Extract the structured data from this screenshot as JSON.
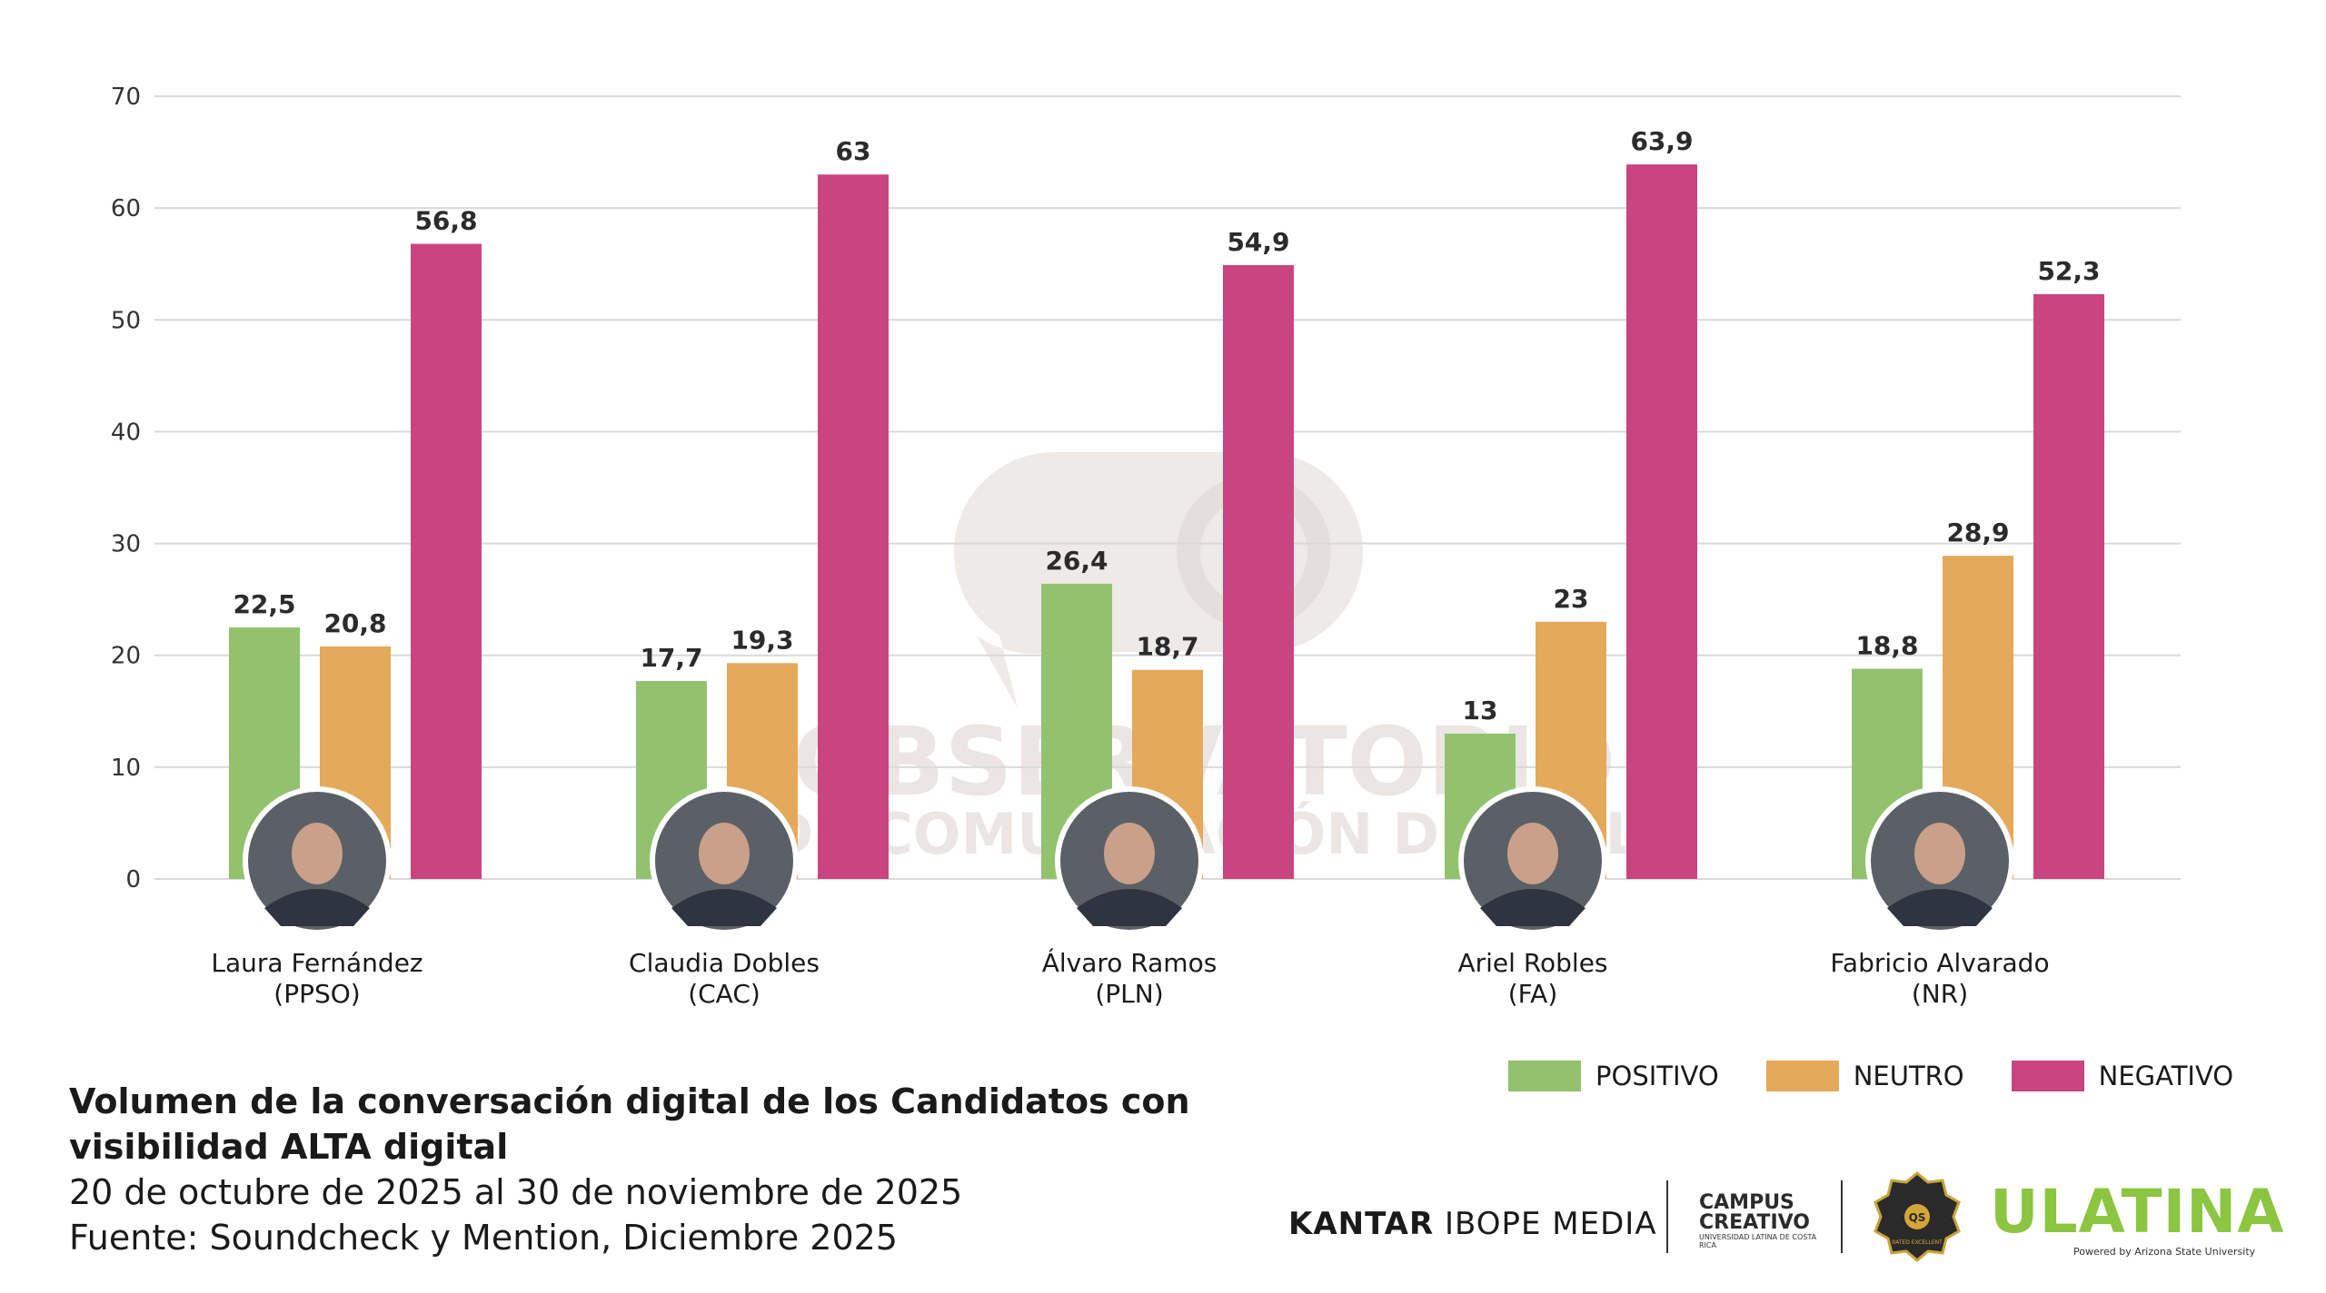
{
  "chart_data": {
    "type": "bar",
    "title": "Volumen de la conversación digital de los Candidatos con visibilidad ALTA digital",
    "subtitle": "20 de octubre de 2025 al 30 de noviembre de 2025",
    "source": "Fuente: Soundcheck y Mention, Diciembre 2025",
    "categories": [
      {
        "name": "Laura Fernández",
        "party": "(PPSO)"
      },
      {
        "name": "Claudia Dobles",
        "party": "(CAC)"
      },
      {
        "name": "Álvaro Ramos",
        "party": "(PLN)"
      },
      {
        "name": "Ariel Robles",
        "party": "(FA)"
      },
      {
        "name": "Fabricio Alvarado",
        "party": "(NR)"
      }
    ],
    "series": [
      {
        "name": "POSITIVO",
        "color": "#92c26e",
        "values": [
          22.5,
          17.7,
          26.4,
          13,
          18.8
        ],
        "labels": [
          "22,5",
          "17,7",
          "26,4",
          "13",
          "18,8"
        ]
      },
      {
        "name": "NEUTRO",
        "color": "#e5a95a",
        "values": [
          20.8,
          19.3,
          18.7,
          23,
          28.9
        ],
        "labels": [
          "20,8",
          "19,3",
          "18,7",
          "23",
          "28,9"
        ]
      },
      {
        "name": "NEGATIVO",
        "color": "#c9457f",
        "values": [
          56.8,
          63,
          54.9,
          63.9,
          52.3
        ],
        "labels": [
          "56,8",
          "63",
          "54,9",
          "63,9",
          "52,3"
        ]
      }
    ],
    "ylim": [
      0,
      70
    ],
    "yticks": [
      0,
      10,
      20,
      30,
      40,
      50,
      60,
      70
    ],
    "grid": true,
    "legend_position": "bottom-right",
    "watermark": [
      "OBSERVATORIO",
      "DE COMUNICACIÓN DIGITAL"
    ]
  },
  "logos": {
    "kantar_bold": "KANTAR",
    "kantar_rest": "IBOPE MEDIA",
    "campus_line1": "CAMPUS",
    "campus_line2": "CREATIVO",
    "campus_small": "UNIVERSIDAD LATINA DE COSTA RICA",
    "badge_text": "RATED EXCELLENT",
    "ulatina_first": "U",
    "ulatina_rest": "LATINA",
    "ulatina_sub": "Powered by Arizona State University"
  }
}
